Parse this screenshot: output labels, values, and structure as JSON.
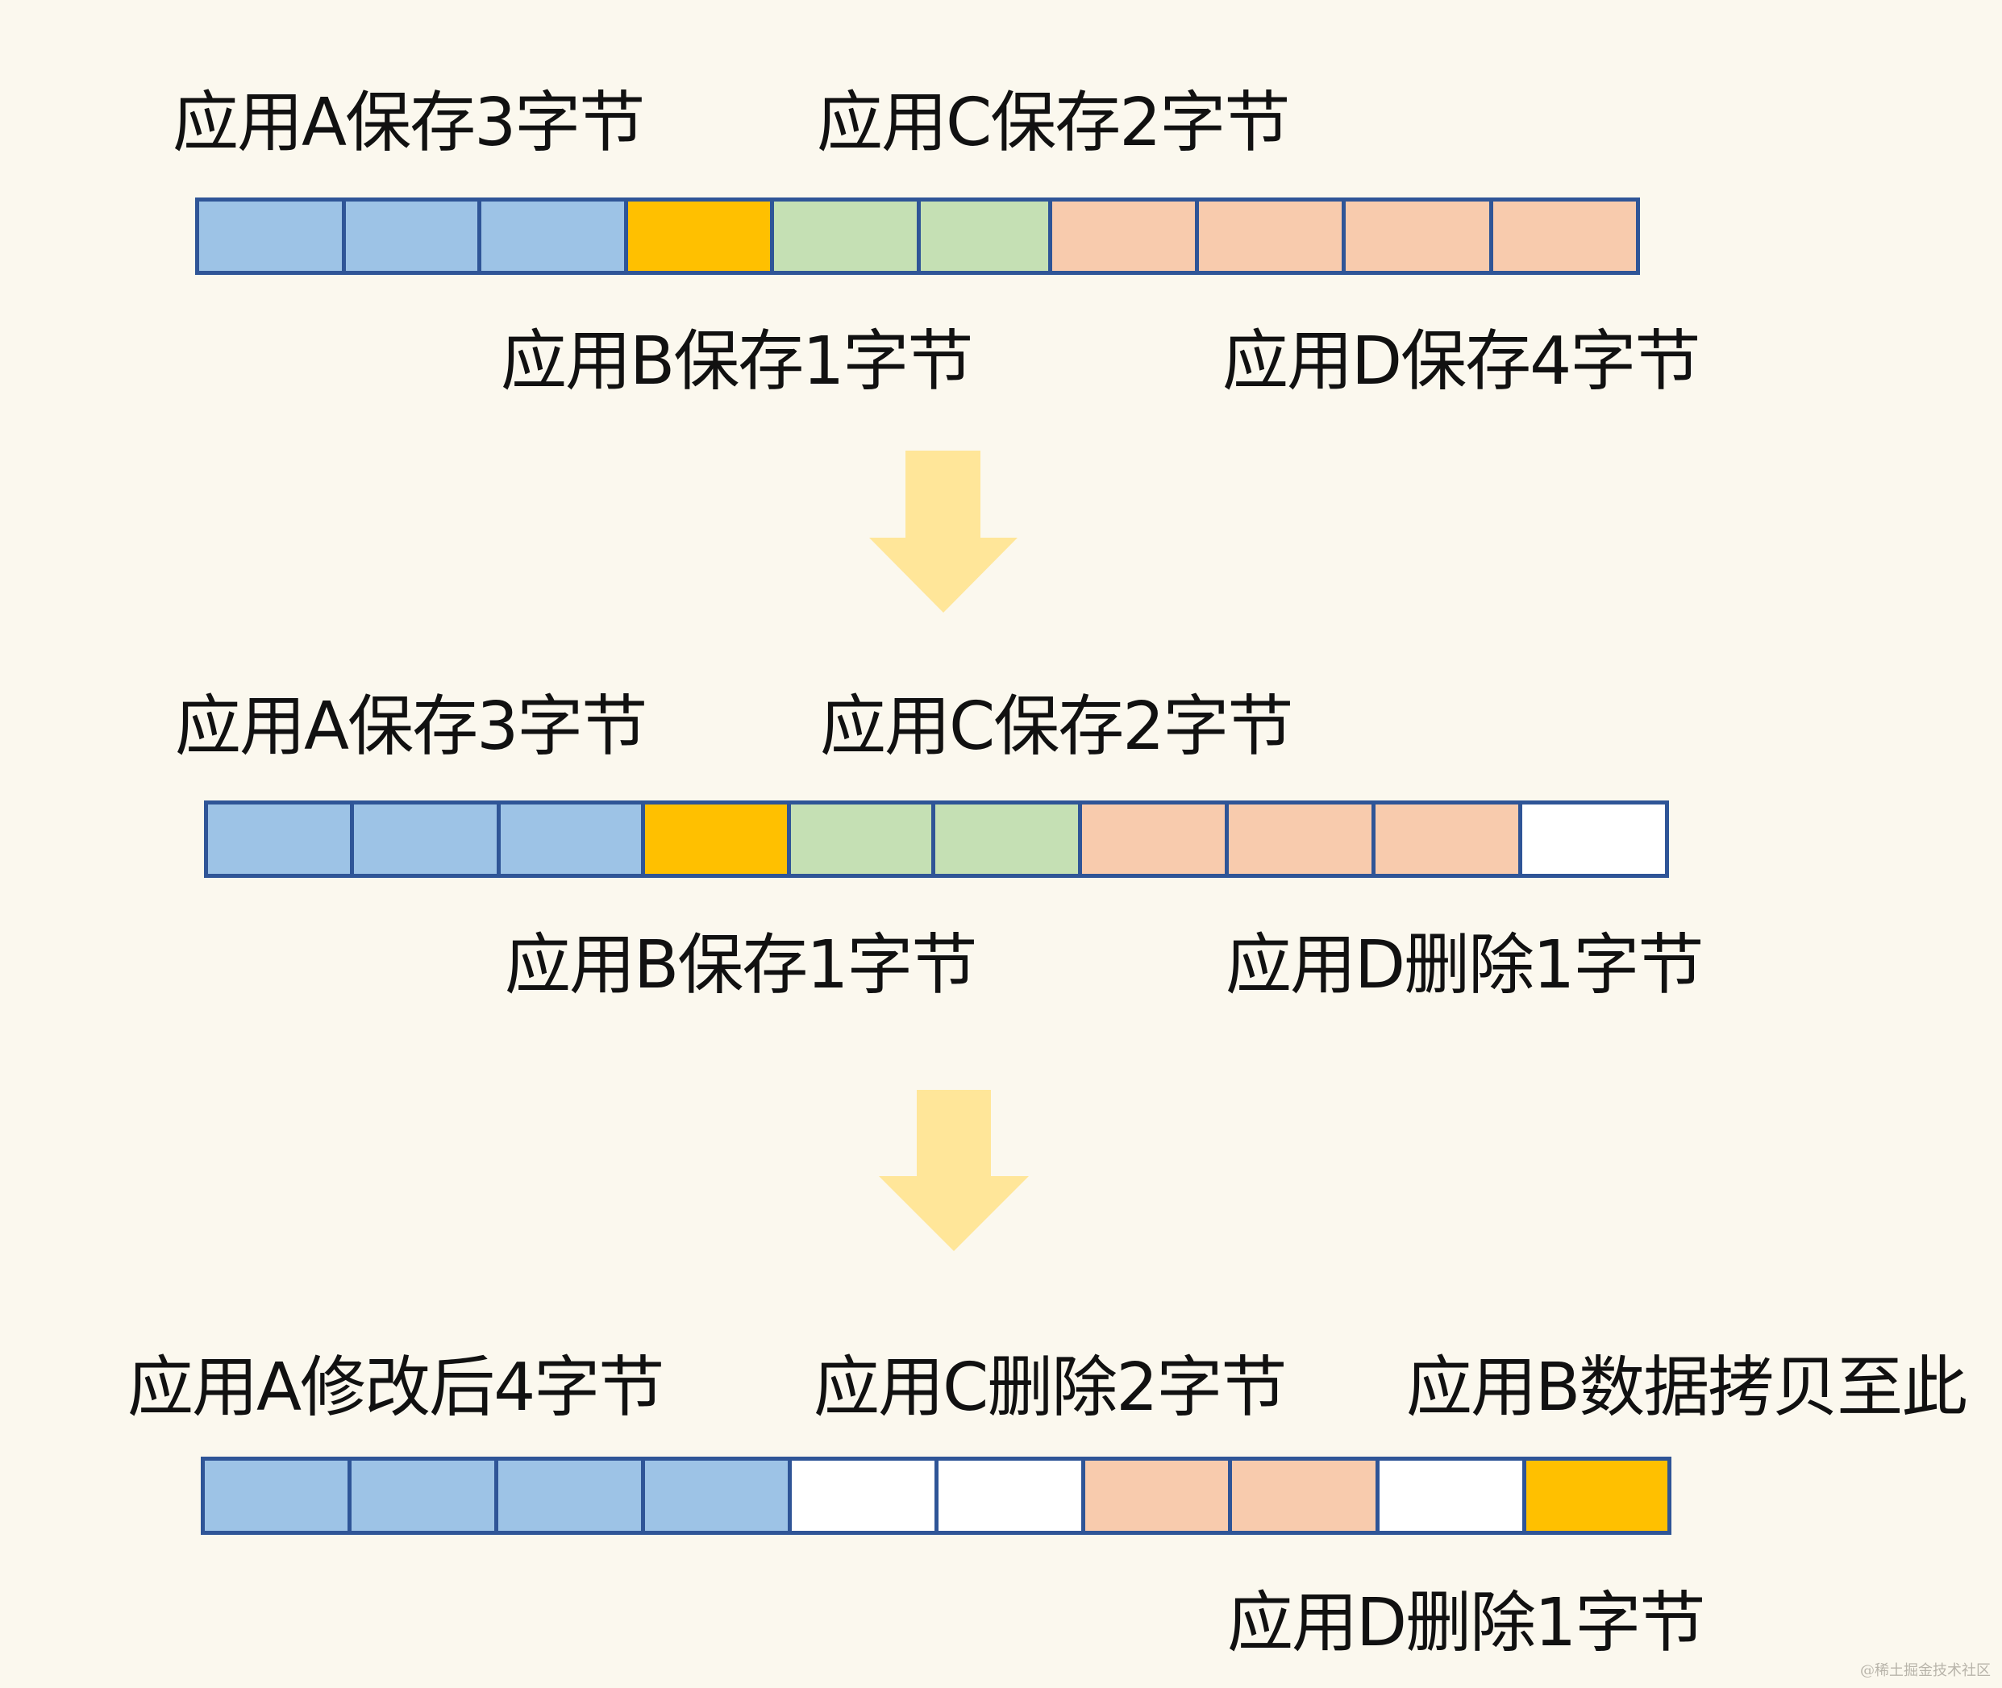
{
  "colors": {
    "background": "#fbf8ee",
    "border": "#2f5597",
    "A": "#9dc3e6",
    "B": "#ffc000",
    "C": "#c5e0b4",
    "D": "#f8cbad",
    "free": "#ffffff",
    "arrow": "#ffe699"
  },
  "stages": [
    {
      "cells": [
        "A",
        "A",
        "A",
        "B",
        "C",
        "C",
        "D",
        "D",
        "D",
        "D"
      ],
      "labels": {
        "a": "应用A保存3字节",
        "c": "应用C保存2字节",
        "b": "应用B保存1字节",
        "d": "应用D保存4字节"
      }
    },
    {
      "cells": [
        "A",
        "A",
        "A",
        "B",
        "C",
        "C",
        "D",
        "D",
        "D",
        "free"
      ],
      "labels": {
        "a": "应用A保存3字节",
        "c": "应用C保存2字节",
        "b": "应用B保存1字节",
        "d": "应用D删除1字节"
      }
    },
    {
      "cells": [
        "A",
        "A",
        "A",
        "A",
        "free",
        "free",
        "D",
        "D",
        "free",
        "B"
      ],
      "labels": {
        "a": "应用A修改后4字节",
        "c": "应用C删除2字节",
        "b": "应用B数据拷贝至此",
        "d": "应用D删除1字节"
      }
    }
  ],
  "watermark": "@稀土掘金技术社区"
}
